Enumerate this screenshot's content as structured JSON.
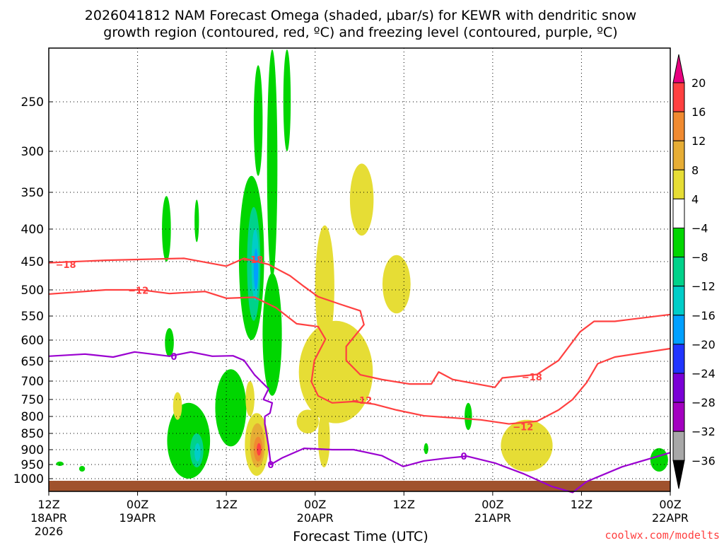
{
  "chart_data": {
    "type": "heatmap",
    "title_line1": "2026041812 NAM Forecast Omega (shaded, μbar/s) for KEWR with dendritic snow",
    "title_line2": "growth region (contoured, red, ºC) and freezing level (contoured, purple, ºC)",
    "xlabel": "Forecast Time (UTC)",
    "credit": "coolwx.com/modelts",
    "x_range_hours": [
      0,
      84
    ],
    "x_ticks": [
      {
        "h": 0,
        "lines": [
          "12Z",
          "18APR",
          "2026"
        ]
      },
      {
        "h": 12,
        "lines": [
          "00Z",
          "19APR"
        ]
      },
      {
        "h": 24,
        "lines": [
          "12Z"
        ]
      },
      {
        "h": 36,
        "lines": [
          "00Z",
          "20APR"
        ]
      },
      {
        "h": 48,
        "lines": [
          "12Z"
        ]
      },
      {
        "h": 60,
        "lines": [
          "00Z",
          "21APR"
        ]
      },
      {
        "h": 72,
        "lines": [
          "12Z"
        ]
      },
      {
        "h": 84,
        "lines": [
          "00Z",
          "22APR"
        ]
      }
    ],
    "y_ticks_hPa": [
      250,
      300,
      350,
      400,
      450,
      500,
      550,
      600,
      650,
      700,
      750,
      800,
      850,
      900,
      950,
      1000
    ],
    "y_range_hPa": [
      200,
      1013
    ],
    "grid": true,
    "colorbar": {
      "labels": [
        "20",
        "16",
        "12",
        "8",
        "4",
        "-4",
        "-8",
        "-12",
        "-16",
        "-20",
        "-24",
        "-28",
        "-32",
        "-36"
      ],
      "over_color": "#e8007f",
      "under_color": "#000000",
      "colors": [
        "#ff4040",
        "#f08a30",
        "#e6ad35",
        "#e6dd35",
        "#ffffff",
        "#00d600",
        "#00d28a",
        "#00cdc8",
        "#00a0ff",
        "#2035ff",
        "#7a00d6",
        "#a300c0",
        "#a8a8a8"
      ],
      "bounds": [
        20,
        16,
        12,
        8,
        4,
        -4,
        -8,
        -12,
        -16,
        -20,
        -24,
        -28,
        -32,
        -36
      ]
    },
    "omega_areas": [
      {
        "h": 30.2,
        "p_top": 200,
        "p_bot": 480,
        "hw": 0.7,
        "value": -6
      },
      {
        "h": 32.2,
        "p_top": 200,
        "p_bot": 300,
        "hw": 0.5,
        "value": -6
      },
      {
        "h": 28.3,
        "p_top": 215,
        "p_bot": 330,
        "hw": 0.6,
        "value": -6
      },
      {
        "h": 27.4,
        "p_top": 330,
        "p_bot": 600,
        "hw": 1.7,
        "value": -6
      },
      {
        "h": 27.7,
        "p_top": 370,
        "p_bot": 560,
        "hw": 0.9,
        "value": -10
      },
      {
        "h": 27.9,
        "p_top": 400,
        "p_bot": 520,
        "hw": 0.5,
        "value": -14
      },
      {
        "h": 28.0,
        "p_top": 430,
        "p_bot": 500,
        "hw": 0.3,
        "value": -18
      },
      {
        "h": 30.2,
        "p_top": 470,
        "p_bot": 740,
        "hw": 1.3,
        "value": -6
      },
      {
        "h": 42.3,
        "p_top": 315,
        "p_bot": 410,
        "hw": 1.6,
        "value": 6
      },
      {
        "h": 47.0,
        "p_top": 440,
        "p_bot": 545,
        "hw": 1.9,
        "value": 6
      },
      {
        "h": 37.3,
        "p_top": 395,
        "p_bot": 620,
        "hw": 1.3,
        "value": 6
      },
      {
        "h": 38.8,
        "p_top": 560,
        "p_bot": 820,
        "hw": 5.0,
        "value": 6
      },
      {
        "h": 37.2,
        "p_top": 780,
        "p_bot": 960,
        "hw": 0.8,
        "value": 6
      },
      {
        "h": 35.0,
        "p_top": 780,
        "p_bot": 850,
        "hw": 1.5,
        "value": 6
      },
      {
        "h": 64.6,
        "p_top": 810,
        "p_bot": 975,
        "hw": 3.5,
        "value": 6
      },
      {
        "h": 24.6,
        "p_top": 670,
        "p_bot": 890,
        "hw": 2.1,
        "value": -6
      },
      {
        "h": 27.2,
        "p_top": 700,
        "p_bot": 800,
        "hw": 0.6,
        "value": 6
      },
      {
        "h": 28.1,
        "p_top": 790,
        "p_bot": 990,
        "hw": 1.6,
        "value": 6
      },
      {
        "h": 28.2,
        "p_top": 820,
        "p_bot": 960,
        "hw": 1.0,
        "value": 10
      },
      {
        "h": 28.3,
        "p_top": 860,
        "p_bot": 940,
        "hw": 0.6,
        "value": 14
      },
      {
        "h": 28.4,
        "p_top": 880,
        "p_bot": 920,
        "hw": 0.3,
        "value": 18
      },
      {
        "h": 18.9,
        "p_top": 760,
        "p_bot": 1000,
        "hw": 2.9,
        "value": -6
      },
      {
        "h": 20.0,
        "p_top": 850,
        "p_bot": 960,
        "hw": 0.9,
        "value": -10
      },
      {
        "h": 20.1,
        "p_top": 880,
        "p_bot": 940,
        "hw": 0.4,
        "value": -14
      },
      {
        "h": 15.9,
        "p_top": 355,
        "p_bot": 450,
        "hw": 0.6,
        "value": -6
      },
      {
        "h": 16.3,
        "p_top": 575,
        "p_bot": 640,
        "hw": 0.6,
        "value": -6
      },
      {
        "h": 17.4,
        "p_top": 730,
        "p_bot": 810,
        "hw": 0.6,
        "value": 6
      },
      {
        "h": 20.0,
        "p_top": 360,
        "p_bot": 420,
        "hw": 0.3,
        "value": -6
      },
      {
        "h": 56.7,
        "p_top": 760,
        "p_bot": 840,
        "hw": 0.5,
        "value": -6
      },
      {
        "h": 51.0,
        "p_top": 880,
        "p_bot": 915,
        "hw": 0.3,
        "value": -6
      },
      {
        "h": 82.5,
        "p_top": 895,
        "p_bot": 975,
        "hw": 1.2,
        "value": -6
      },
      {
        "h": 1.5,
        "p_top": 940,
        "p_bot": 955,
        "hw": 0.5,
        "value": -6
      },
      {
        "h": 4.5,
        "p_top": 955,
        "p_bot": 975,
        "hw": 0.4,
        "value": -6
      }
    ],
    "contours": [
      {
        "name": "-18 C",
        "color": "#ff4040",
        "points": [
          [
            0,
            452
          ],
          [
            7.7,
            448
          ],
          [
            18.3,
            445
          ],
          [
            24,
            458
          ],
          [
            26.4,
            445
          ],
          [
            29.7,
            455
          ],
          [
            32.6,
            475
          ],
          [
            34.5,
            494
          ],
          [
            36.4,
            513
          ],
          [
            39.3,
            527
          ],
          [
            42.1,
            540
          ],
          [
            42.6,
            568
          ],
          [
            40.2,
            615
          ],
          [
            40.2,
            648
          ],
          [
            42.1,
            684
          ],
          [
            45,
            696
          ],
          [
            48.8,
            708
          ],
          [
            51.7,
            708
          ],
          [
            52.7,
            677
          ],
          [
            54.6,
            696
          ],
          [
            60.3,
            717
          ],
          [
            61.3,
            692
          ],
          [
            66,
            683
          ],
          [
            68.9,
            648
          ],
          [
            71.8,
            583
          ],
          [
            73.7,
            561
          ],
          [
            76.5,
            561
          ],
          [
            84,
            547
          ]
        ]
      },
      {
        "name": "-12 C",
        "color": "#ff4040",
        "points": [
          [
            0,
            508
          ],
          [
            7.7,
            500
          ],
          [
            12.5,
            500
          ],
          [
            16.3,
            507
          ],
          [
            21.1,
            503
          ],
          [
            24,
            516
          ],
          [
            27.8,
            514
          ],
          [
            30.7,
            534
          ],
          [
            33.5,
            566
          ],
          [
            36.4,
            572
          ],
          [
            37.4,
            598
          ],
          [
            35.9,
            648
          ],
          [
            35.5,
            702
          ],
          [
            36.4,
            740
          ],
          [
            38.3,
            760
          ],
          [
            41.2,
            756
          ],
          [
            44,
            764
          ],
          [
            47,
            781
          ],
          [
            50.7,
            798
          ],
          [
            58.4,
            810
          ],
          [
            62.2,
            822
          ],
          [
            66,
            814
          ],
          [
            68.9,
            781
          ],
          [
            70.8,
            750
          ],
          [
            72.7,
            704
          ],
          [
            74.2,
            656
          ],
          [
            76.5,
            640
          ],
          [
            84,
            620
          ]
        ]
      },
      {
        "name": "0 C",
        "color": "#9a00d0",
        "points": [
          [
            0,
            638
          ],
          [
            4.9,
            633
          ],
          [
            8.7,
            640
          ],
          [
            11.6,
            628
          ],
          [
            16.3,
            638
          ],
          [
            19.2,
            628
          ],
          [
            22.1,
            638
          ],
          [
            24.9,
            637
          ],
          [
            26.4,
            648
          ],
          [
            27.8,
            684
          ],
          [
            29.7,
            721
          ],
          [
            29.0,
            750
          ],
          [
            30.2,
            760
          ],
          [
            29.9,
            790
          ],
          [
            29.2,
            800
          ],
          [
            29.2,
            822
          ],
          [
            29.7,
            888
          ],
          [
            30,
            950
          ],
          [
            31.6,
            927
          ],
          [
            34.5,
            896
          ],
          [
            38.3,
            900
          ],
          [
            41.2,
            900
          ],
          [
            45,
            920
          ],
          [
            47.9,
            957
          ],
          [
            50.7,
            938
          ],
          [
            53.6,
            929
          ],
          [
            56.5,
            922
          ],
          [
            60.3,
            945
          ],
          [
            64.1,
            982
          ],
          [
            68,
            1008
          ],
          [
            70.8,
            1018
          ],
          [
            72.7,
            1003
          ],
          [
            77.5,
            958
          ],
          [
            84,
            910
          ]
        ]
      }
    ],
    "contour_labels": [
      {
        "text": "-18",
        "h": 2.3,
        "p": 455,
        "color": "#ff4040"
      },
      {
        "text": "-12",
        "h": 12.1,
        "p": 501,
        "color": "#ff4040"
      },
      {
        "text": "-18",
        "h": 27.6,
        "p": 447,
        "color": "#ff4040"
      },
      {
        "text": "0",
        "h": 16.9,
        "p": 638,
        "color": "#9a00d0"
      },
      {
        "text": "0",
        "h": 30.0,
        "p": 950,
        "color": "#9a00d0"
      },
      {
        "text": "-12",
        "h": 42.3,
        "p": 752,
        "color": "#ff4040"
      },
      {
        "text": "0",
        "h": 56.1,
        "p": 922,
        "color": "#9a00d0"
      },
      {
        "text": "-18",
        "h": 65.3,
        "p": 689,
        "color": "#ff4040"
      },
      {
        "text": "-12",
        "h": 64.1,
        "p": 830,
        "color": "#ff4040"
      }
    ],
    "ground_color": "#a0522d"
  }
}
